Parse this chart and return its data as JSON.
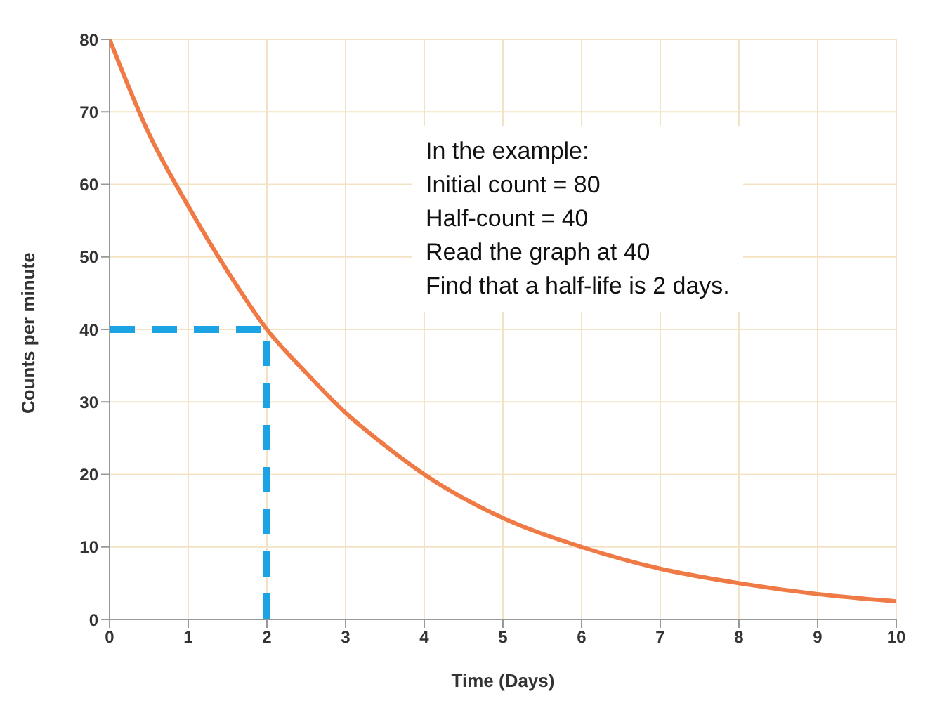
{
  "chart_data": {
    "type": "line",
    "xlabel": "Time (Days)",
    "ylabel": "Counts per minute",
    "xlim": [
      0,
      10
    ],
    "xticks": [
      0,
      1,
      2,
      3,
      4,
      5,
      6,
      7,
      8,
      9,
      10
    ],
    "ylim": [
      0,
      80
    ],
    "yticks": [
      0,
      10,
      20,
      30,
      40,
      50,
      60,
      70,
      80
    ],
    "grid": true,
    "marker": "none",
    "series": [
      {
        "color": "#f07a45",
        "line_style": "solid",
        "x": [
          0,
          0.5,
          1,
          1.5,
          2,
          2.5,
          3,
          3.5,
          4,
          5,
          6,
          7,
          8,
          9,
          10
        ],
        "values": [
          80,
          67,
          57,
          48,
          40,
          34,
          28.5,
          24,
          20,
          14,
          10,
          7,
          5,
          3.5,
          2.5
        ]
      },
      {
        "color": "#1ba3e3",
        "line_style": "dashed",
        "x": [
          0,
          2,
          2
        ],
        "values": [
          40,
          40,
          0
        ]
      }
    ],
    "annotations": [
      "In the example:",
      "Initial count = 80",
      "Half-count = 40",
      "Read the graph at 40",
      "Find that a half-life is 2 days."
    ]
  }
}
